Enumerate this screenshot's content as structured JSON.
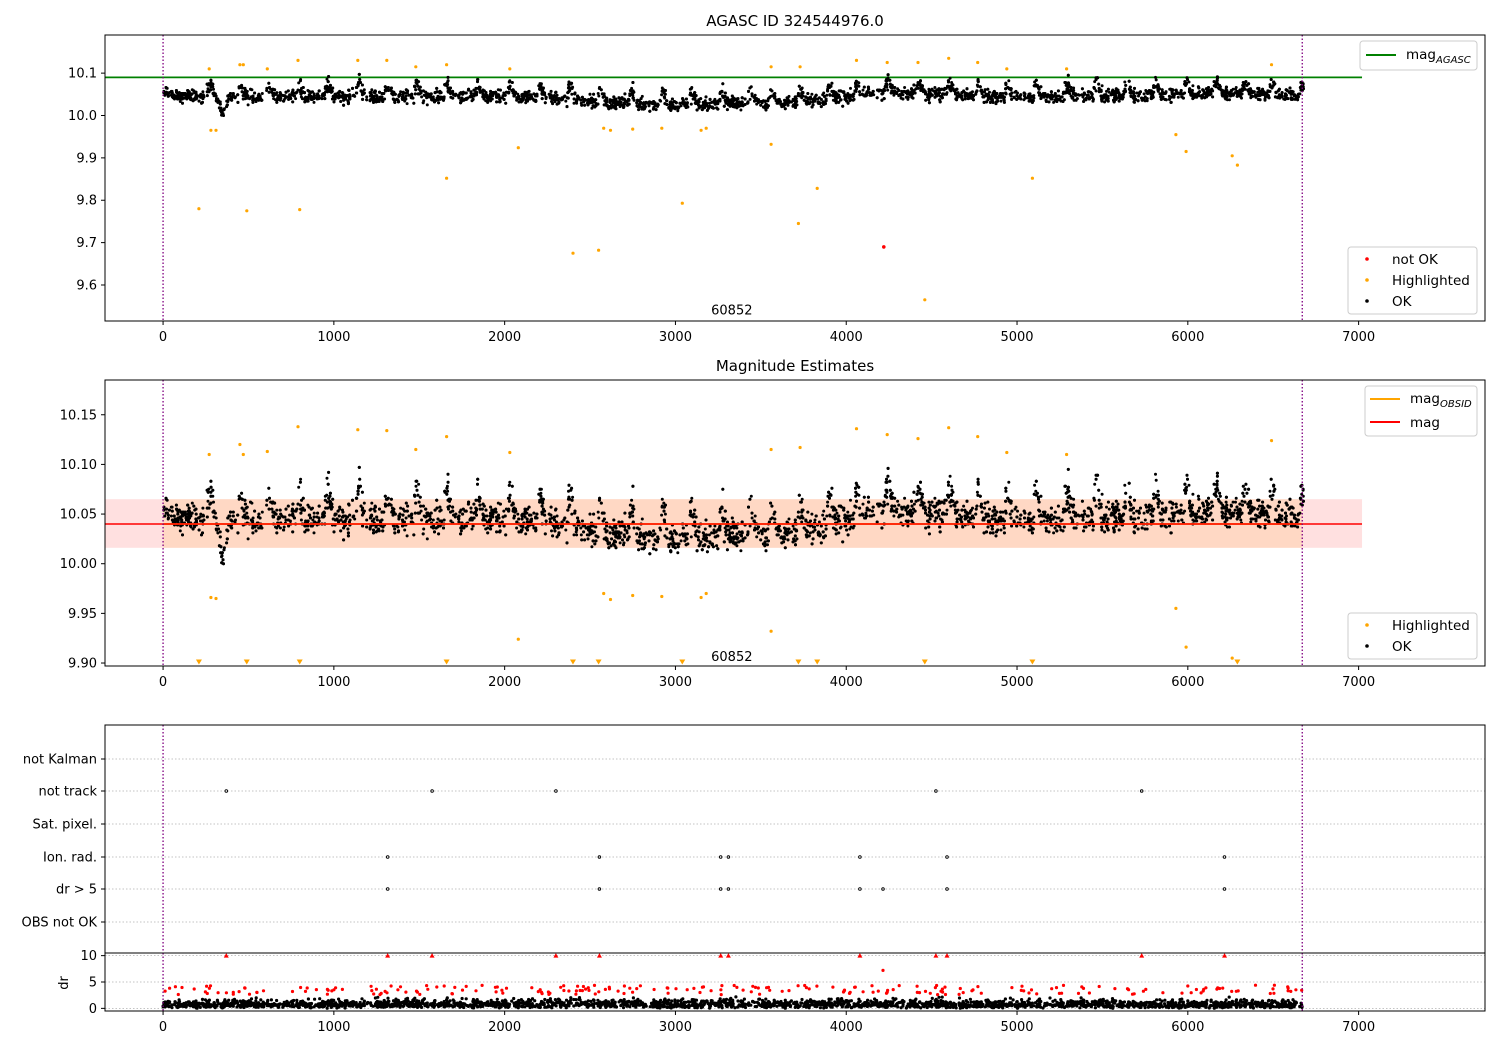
{
  "chart_data": [
    {
      "type": "scatter",
      "title": "AGASC ID 324544976.0",
      "xlim": [
        -340,
        7740
      ],
      "ylim": [
        9.515,
        10.19
      ],
      "xticks": [
        0,
        1000,
        2000,
        3000,
        4000,
        5000,
        6000,
        7000
      ],
      "xtick_labels": [
        "0",
        "1000",
        "2000",
        "3000",
        "4000",
        "5000",
        "6000",
        "7000"
      ],
      "yticks": [
        9.6,
        9.7,
        9.8,
        9.9,
        10.0,
        10.1
      ],
      "ytick_labels": [
        "9.6",
        "9.7",
        "9.8",
        "9.9",
        "10.0",
        "10.1"
      ],
      "obs_boundaries": [
        0,
        6670
      ],
      "obs_labels": [
        {
          "x": 3330,
          "y": 9.54,
          "text": "60852"
        }
      ],
      "agasc_mag": {
        "value": 10.09,
        "x_range": [
          -340,
          7020
        ],
        "color": "#008000"
      },
      "series": [
        {
          "name": "not OK",
          "color": "#ff0000",
          "points": [
            [
              4220,
              9.69
            ]
          ]
        },
        {
          "name": "Highlighted",
          "color": "#ffa500",
          "points": [
            [
              210,
              9.78
            ],
            [
              280,
              9.965
            ],
            [
              310,
              9.965
            ],
            [
              490,
              9.775
            ],
            [
              800,
              9.778
            ],
            [
              1660,
              9.852
            ],
            [
              2080,
              9.924
            ],
            [
              2400,
              9.675
            ],
            [
              2550,
              9.682
            ],
            [
              2580,
              9.97
            ],
            [
              2620,
              9.965
            ],
            [
              2750,
              9.968
            ],
            [
              2920,
              9.97
            ],
            [
              3040,
              9.793
            ],
            [
              3150,
              9.965
            ],
            [
              3180,
              9.97
            ],
            [
              3560,
              9.932
            ],
            [
              3720,
              9.745
            ],
            [
              3830,
              9.828
            ],
            [
              4460,
              9.565
            ],
            [
              5090,
              9.852
            ],
            [
              5930,
              9.955
            ],
            [
              5990,
              9.915
            ],
            [
              6260,
              9.905
            ],
            [
              6290,
              9.883
            ],
            [
              270,
              10.11
            ],
            [
              450,
              10.12
            ],
            [
              470,
              10.12
            ],
            [
              610,
              10.11
            ],
            [
              790,
              10.13
            ],
            [
              1140,
              10.13
            ],
            [
              1310,
              10.13
            ],
            [
              1480,
              10.115
            ],
            [
              1660,
              10.12
            ],
            [
              2030,
              10.11
            ],
            [
              3560,
              10.115
            ],
            [
              3730,
              10.115
            ],
            [
              4060,
              10.13
            ],
            [
              4240,
              10.125
            ],
            [
              4420,
              10.125
            ],
            [
              4600,
              10.135
            ],
            [
              4770,
              10.125
            ],
            [
              4940,
              10.11
            ],
            [
              5290,
              10.11
            ],
            [
              6490,
              10.12
            ]
          ]
        },
        {
          "name": "OK",
          "color": "#000000",
          "points": []
        }
      ],
      "legend": {
        "position": "lower right",
        "entries": [
          "not OK",
          "Highlighted",
          "OK"
        ]
      },
      "line_legend": {
        "position": "upper right",
        "entries": [
          "mag_AGASC"
        ]
      }
    },
    {
      "type": "scatter",
      "title": "Magnitude Estimates",
      "xlim": [
        -340,
        7740
      ],
      "ylim": [
        9.897,
        10.185
      ],
      "xticks": [
        0,
        1000,
        2000,
        3000,
        4000,
        5000,
        6000,
        7000
      ],
      "xtick_labels": [
        "0",
        "1000",
        "2000",
        "3000",
        "4000",
        "5000",
        "6000",
        "7000"
      ],
      "yticks": [
        9.9,
        9.95,
        10.0,
        10.05,
        10.1,
        10.15
      ],
      "ytick_labels": [
        "9.90",
        "9.95",
        "10.00",
        "10.05",
        "10.10",
        "10.15"
      ],
      "obs_boundaries": [
        0,
        6670
      ],
      "obs_labels": [
        {
          "x": 3330,
          "y": 9.906,
          "text": "60852"
        }
      ],
      "mag": {
        "value": 10.04,
        "band": [
          10.016,
          10.065
        ],
        "x_range": [
          -340,
          7020
        ]
      },
      "mag_obsid": {
        "value": 10.04,
        "x_range": [
          0,
          6670
        ]
      },
      "clipped_markers_x": [
        210,
        490,
        800,
        1660,
        2400,
        2550,
        3040,
        3720,
        3830,
        4460,
        5090,
        6290
      ],
      "series": [
        {
          "name": "Highlighted",
          "color": "#ffa500",
          "points": [
            [
              280,
              9.966
            ],
            [
              310,
              9.965
            ],
            [
              2580,
              9.97
            ],
            [
              2620,
              9.964
            ],
            [
              2750,
              9.968
            ],
            [
              2920,
              9.967
            ],
            [
              3150,
              9.966
            ],
            [
              3180,
              9.97
            ],
            [
              2080,
              9.924
            ],
            [
              3560,
              9.932
            ],
            [
              5930,
              9.955
            ],
            [
              5990,
              9.916
            ],
            [
              6260,
              9.905
            ],
            [
              270,
              10.11
            ],
            [
              450,
              10.12
            ],
            [
              470,
              10.11
            ],
            [
              610,
              10.113
            ],
            [
              790,
              10.138
            ],
            [
              1140,
              10.135
            ],
            [
              1310,
              10.134
            ],
            [
              1480,
              10.115
            ],
            [
              1660,
              10.128
            ],
            [
              2030,
              10.112
            ],
            [
              3560,
              10.115
            ],
            [
              3730,
              10.117
            ],
            [
              4060,
              10.136
            ],
            [
              4240,
              10.13
            ],
            [
              4420,
              10.126
            ],
            [
              4600,
              10.137
            ],
            [
              4770,
              10.128
            ],
            [
              4940,
              10.112
            ],
            [
              5290,
              10.11
            ],
            [
              6490,
              10.124
            ]
          ]
        },
        {
          "name": "OK",
          "color": "#000000",
          "points": []
        }
      ],
      "legend": {
        "position": "lower right",
        "entries": [
          "Highlighted",
          "OK"
        ]
      },
      "line_legend": {
        "position": "upper right",
        "entries": [
          "mag_OBSID",
          "mag"
        ]
      }
    },
    {
      "type": "scatter",
      "title": "",
      "xlim": [
        -340,
        7740
      ],
      "categories": [
        "not Kalman",
        "not track",
        "Sat. pixel.",
        "Ion. rad.",
        "dr > 5",
        "OBS not OK"
      ],
      "obs_boundaries": [
        0,
        6670
      ],
      "flags": {
        "not Kalman": [],
        "not track": [
          370,
          1575,
          2300,
          4525,
          5730
        ],
        "Sat. pixel.": [],
        "Ion. rad.": [
          1315,
          2555,
          3265,
          3310,
          4080,
          4590,
          6215
        ],
        "dr > 5": [
          1315,
          2555,
          3265,
          3310,
          4080,
          4215,
          4590,
          6215
        ],
        "OBS not OK": []
      }
    },
    {
      "type": "scatter",
      "title": "",
      "ylabel": "dr",
      "xlim": [
        -340,
        7740
      ],
      "ylim": [
        -0.5,
        10.5
      ],
      "xticks": [
        0,
        1000,
        2000,
        3000,
        4000,
        5000,
        6000,
        7000
      ],
      "xtick_labels": [
        "0",
        "1000",
        "2000",
        "3000",
        "4000",
        "5000",
        "6000",
        "7000"
      ],
      "yticks": [
        0,
        5,
        10
      ],
      "ytick_labels": [
        "0",
        "5",
        "10"
      ],
      "obs_boundaries": [
        0,
        6670
      ],
      "clipped_x": [
        370,
        1315,
        1575,
        2300,
        2555,
        3265,
        3310,
        4080,
        4525,
        4590,
        5730,
        6215
      ],
      "series": [
        {
          "name": "dr (flagged)",
          "color": "#ff0000",
          "points": [
            [
              4215,
              7.2
            ]
          ]
        },
        {
          "name": "dr",
          "color": "#000000",
          "points": []
        }
      ]
    }
  ]
}
